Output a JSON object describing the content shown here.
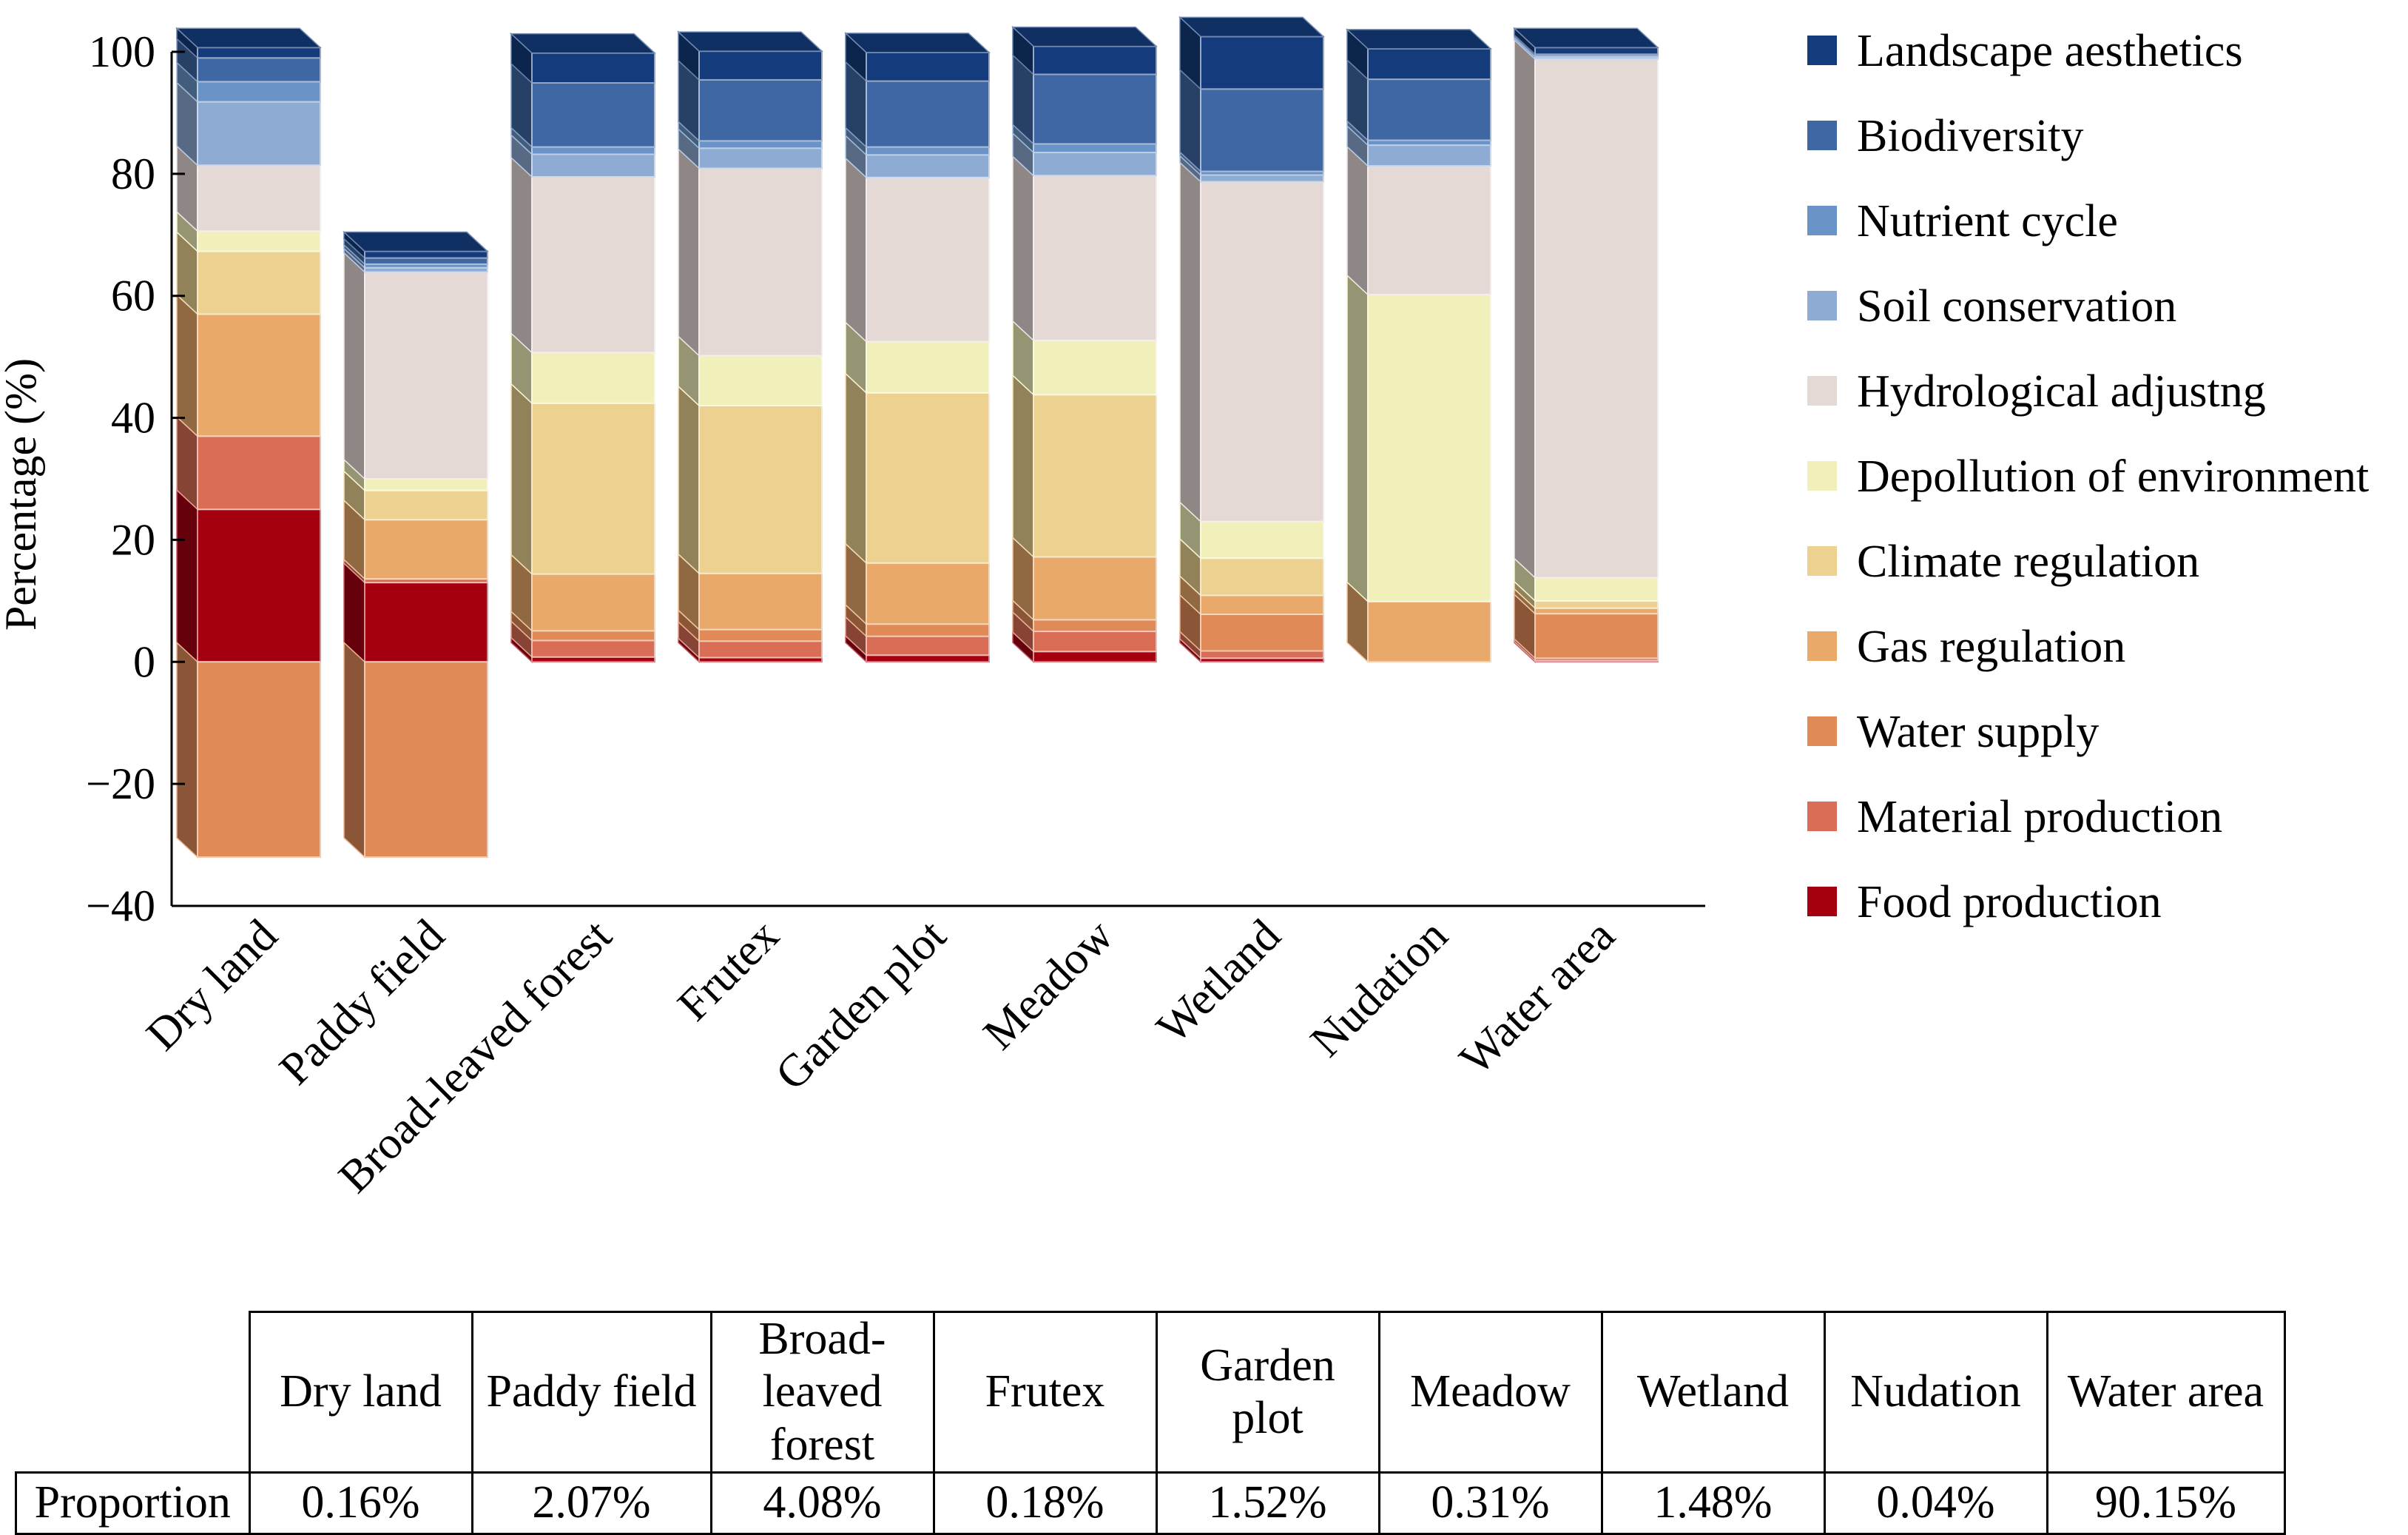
{
  "chart_data": {
    "type": "bar",
    "stacked": true,
    "style": "3d",
    "ylabel": "Percentage (%)",
    "ylim": [
      -40,
      100
    ],
    "yticks": [
      -40,
      -20,
      0,
      20,
      40,
      60,
      80,
      100
    ],
    "ytick_labels": [
      "−40",
      "−20",
      "0",
      "20",
      "40",
      "60",
      "80",
      "100"
    ],
    "legend_position": "right",
    "categories": [
      "Dry land",
      "Paddy field",
      "Broad-leaved forest",
      "Frutex",
      "Garden plot",
      "Meadow",
      "Wetland",
      "Nudation",
      "Water area"
    ],
    "series": [
      {
        "name": "Food production",
        "color": "#a50010",
        "values": [
          25.0,
          13.0,
          0.8,
          0.7,
          1.1,
          1.7,
          0.6,
          0.0,
          0.2
        ]
      },
      {
        "name": "Material production",
        "color": "#d96d55",
        "values": [
          12.0,
          0.6,
          2.7,
          2.7,
          3.1,
          3.3,
          1.2,
          0.0,
          0.4
        ]
      },
      {
        "name": "Water supply",
        "color": "#e08a58",
        "values": [
          -32.0,
          -32.0,
          1.6,
          1.9,
          2.0,
          1.9,
          6.0,
          0.0,
          7.3
        ]
      },
      {
        "name": "Gas regulation",
        "color": "#e8a96b",
        "values": [
          20.0,
          9.7,
          9.3,
          9.2,
          10.0,
          10.3,
          3.1,
          9.9,
          0.9
        ]
      },
      {
        "name": "Climate regulation",
        "color": "#ecd190",
        "values": [
          10.3,
          4.8,
          28.0,
          27.5,
          27.9,
          26.6,
          6.1,
          0.0,
          1.2
        ]
      },
      {
        "name": "Depollution of environment",
        "color": "#f1f0ba",
        "values": [
          3.3,
          1.9,
          8.3,
          8.2,
          8.4,
          8.9,
          6.0,
          50.3,
          3.8
        ]
      },
      {
        "name": "Hydrological adjustng",
        "color": "#e5d9d6",
        "values": [
          10.8,
          33.9,
          28.8,
          30.7,
          26.9,
          27.0,
          55.7,
          21.1,
          85.0
        ]
      },
      {
        "name": "Soil conservation",
        "color": "#8eabd4",
        "values": [
          10.4,
          0.7,
          3.7,
          3.3,
          3.7,
          3.8,
          1.1,
          3.4,
          0.3
        ]
      },
      {
        "name": "Nutrient cycle",
        "color": "#6a94c8",
        "values": [
          3.3,
          0.6,
          1.2,
          1.2,
          1.3,
          1.4,
          0.6,
          0.8,
          0.2
        ]
      },
      {
        "name": "Biodiversity",
        "color": "#3f67a4",
        "values": [
          3.9,
          1.0,
          10.5,
          10.0,
          10.8,
          11.4,
          13.5,
          10.0,
          0.3
        ]
      },
      {
        "name": "Landscape aesthetics",
        "color": "#143c7c",
        "values": [
          1.7,
          1.1,
          4.9,
          4.7,
          4.7,
          4.6,
          8.6,
          5.0,
          1.1
        ]
      }
    ]
  },
  "table": {
    "headers": [
      "Dry land",
      "Paddy field",
      "Broad-leaved forest",
      "Frutex",
      "Garden plot",
      "Meadow",
      "Wetland",
      "Nudation",
      "Water area"
    ],
    "header_lines": [
      [
        "Dry land"
      ],
      [
        "Paddy field"
      ],
      [
        "Broad-",
        "leaved",
        "forest"
      ],
      [
        "Frutex"
      ],
      [
        "Garden",
        "plot"
      ],
      [
        "Meadow"
      ],
      [
        "Wetland"
      ],
      [
        "Nudation"
      ],
      [
        "Water area"
      ]
    ],
    "row_label": "Proportion",
    "values": [
      "0.16%",
      "2.07%",
      "4.08%",
      "0.18%",
      "1.52%",
      "0.31%",
      "1.48%",
      "0.04%",
      "90.15%"
    ]
  }
}
